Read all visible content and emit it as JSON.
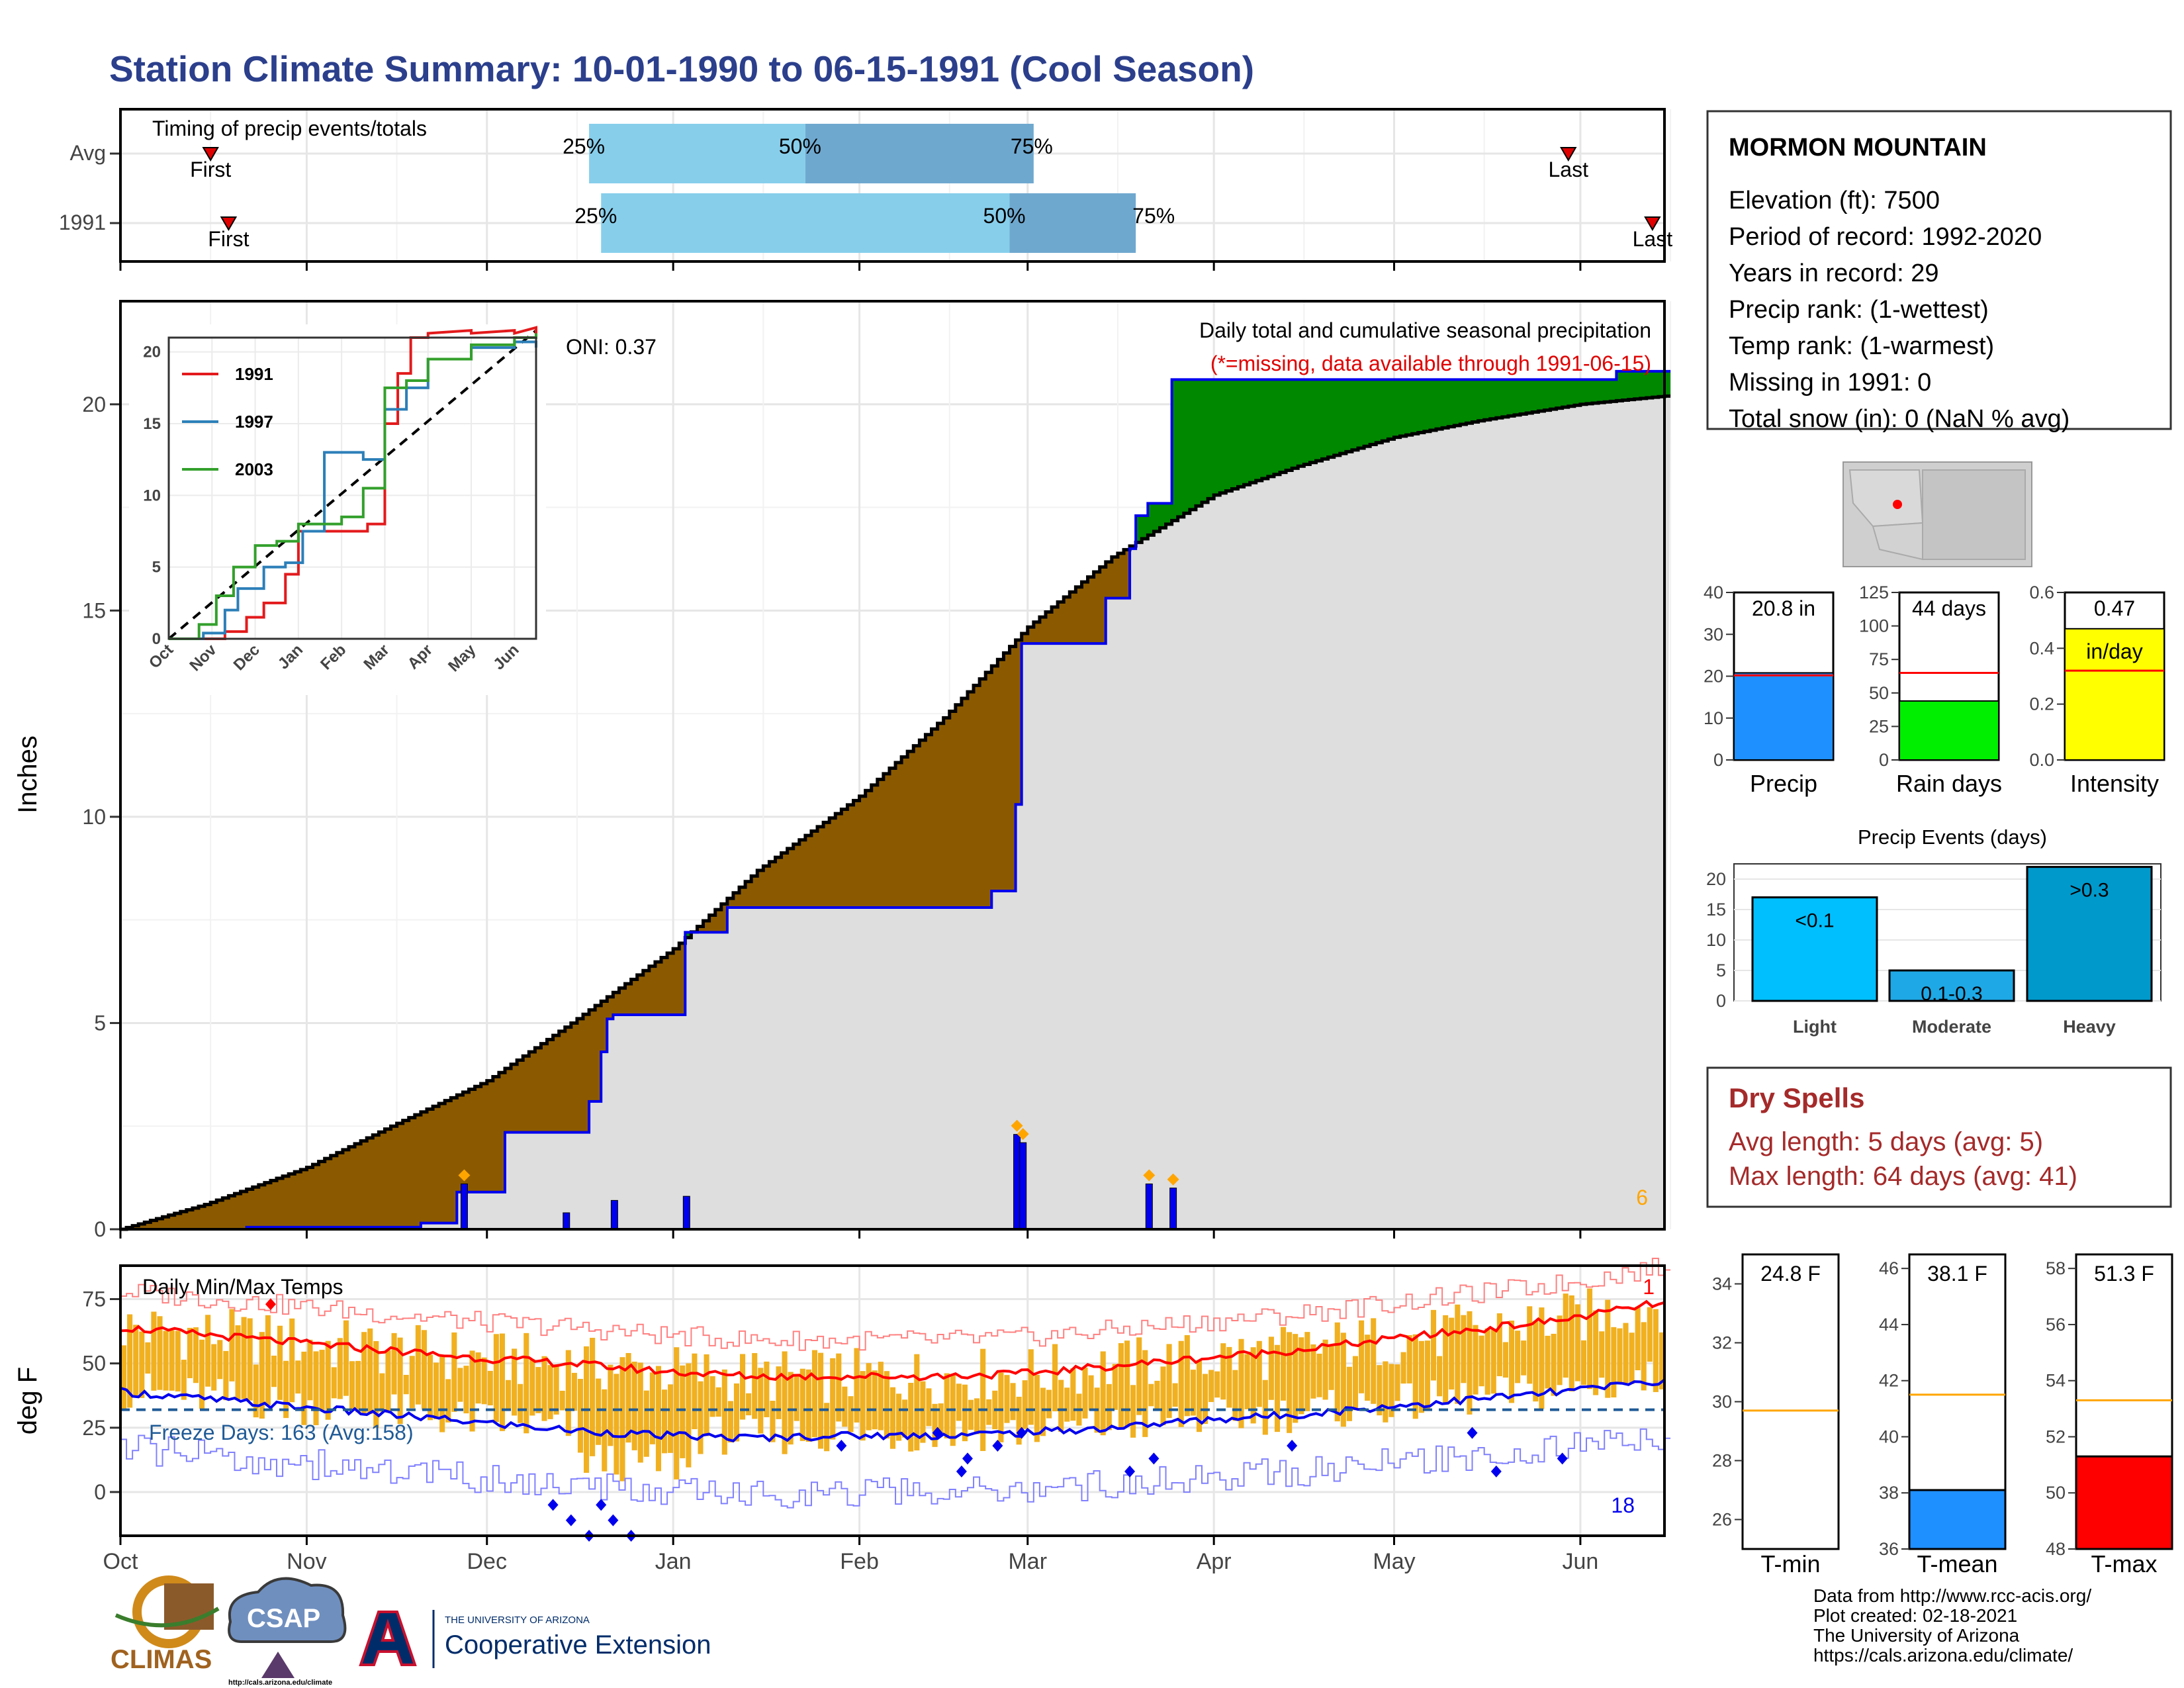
{
  "page": {
    "title": "Station Climate Summary: 10-01-1990 to 06-15-1991 (Cool Season)"
  },
  "colors": {
    "title": "#2b3f8c",
    "cum_1991": "#0000ee",
    "deficit_fill": "#8b5a00",
    "surplus_fill": "#008800",
    "avg_fill": "#dedede",
    "avg_line": "#000000",
    "bar_daily": "#0000ee",
    "marker": "#ffa500",
    "tmax": "#ff0000",
    "tmin": "#0000ee",
    "temp_bar": "#f0b020",
    "freeze_line": "#1f5a96",
    "dry_spells": "#a52a2a"
  },
  "timing": {
    "title": "Timing of precip events/totals",
    "rows": [
      {
        "label": "Avg",
        "first_label": "First",
        "last_label": "Last",
        "first_date": "1990-10-16",
        "last_date": "1991-05-30",
        "p25_date": "1990-12-18",
        "p50_date": "1991-01-23",
        "p75_date": "1991-03-02",
        "p25_label": "25%",
        "p50_label": "50%",
        "p75_label": "75%"
      },
      {
        "label": "1991",
        "first_label": "First",
        "last_label": "Last",
        "first_date": "1990-10-19",
        "last_date": "1991-06-13",
        "p25_date": "1990-12-20",
        "p50_date": "1991-02-26",
        "p75_date": "1991-03-19",
        "p25_label": "25%",
        "p50_label": "50%",
        "p75_label": "75%"
      }
    ]
  },
  "precip_panel": {
    "ylabel": "Inches",
    "title": "Daily total and cumulative seasonal precipitation",
    "subtitle": "(*=missing, data available through 1991-06-15)",
    "oni": "ONI: 0.37",
    "corner_count": "6"
  },
  "inset": {
    "legend": [
      {
        "name": "1991",
        "color": "#e31a1c"
      },
      {
        "name": "1997",
        "color": "#2c7fb8"
      },
      {
        "name": "2003",
        "color": "#33a02c"
      }
    ]
  },
  "temp_panel": {
    "ylabel": "deg F",
    "title": "Daily Min/Max Temps",
    "freeze_text": "Freeze Days: 163 (Avg:158)",
    "max_count": "1",
    "min_count": "18"
  },
  "station": {
    "name": "MORMON MOUNTAIN",
    "lines": [
      "Elevation (ft): 7500",
      "Period of record: 1992-2020",
      "Years in record: 29",
      "Precip rank:  (1-wettest)",
      "Temp rank:  (1-warmest)",
      "Missing in 1991: 0",
      "Total snow (in): 0 (NaN % avg)"
    ]
  },
  "summary_bars": [
    {
      "label": "Precip",
      "value_label": "20.8 in",
      "value": 20.8,
      "avg": 20.2,
      "ymax": 40,
      "ticks": [
        0,
        10,
        20,
        30,
        40
      ],
      "fill": "#1e90ff"
    },
    {
      "label": "Rain days",
      "value_label": "44 days",
      "value": 44,
      "avg": 65,
      "ymax": 125,
      "ticks": [
        0,
        25,
        50,
        75,
        100,
        125
      ],
      "fill": "#00ee00"
    },
    {
      "label": "Intensity",
      "value_label": "0.47",
      "value_label2": "in/day",
      "value": 0.47,
      "avg": 0.32,
      "ymax": 0.6,
      "ticks": [
        0.0,
        0.2,
        0.4,
        0.6
      ],
      "fill": "#ffff00"
    }
  ],
  "events": {
    "title": "Precip Events (days)",
    "bars": [
      {
        "label": "Light",
        "inner": "<0.1",
        "value": 17,
        "fill": "#00bfff"
      },
      {
        "label": "Moderate",
        "inner": "0.1-0.3",
        "value": 5,
        "fill": "#1ea8e6"
      },
      {
        "label": "Heavy",
        "inner": ">0.3",
        "value": 22,
        "fill": "#0099cc"
      }
    ],
    "ticks": [
      0,
      5,
      10,
      15,
      20
    ]
  },
  "dry_spells": {
    "title": "Dry Spells",
    "avg_length": "Avg length: 5 days (avg: 5)",
    "max_length": "Max length: 64 days (avg: 41)"
  },
  "temp_bars": [
    {
      "label": "T-min",
      "value_label": "24.8 F",
      "value": 24.8,
      "avg": 29.7,
      "ymin": 25,
      "ymax": 35,
      "ticks": [
        26,
        28,
        30,
        32,
        34
      ],
      "fill": "#0000ee"
    },
    {
      "label": "T-mean",
      "value_label": "38.1 F",
      "value": 38.1,
      "avg": 41.5,
      "ymin": 36,
      "ymax": 46.5,
      "ticks": [
        36,
        38,
        40,
        42,
        44,
        46
      ],
      "fill": "#1e90ff"
    },
    {
      "label": "T-max",
      "value_label": "51.3 F",
      "value": 51.3,
      "avg": 53.3,
      "ymin": 48,
      "ymax": 58.5,
      "ticks": [
        48,
        50,
        52,
        54,
        56,
        58
      ],
      "fill": "#ff0000"
    }
  ],
  "x_axis": {
    "months": [
      "Oct",
      "Nov",
      "Dec",
      "Jan",
      "Feb",
      "Mar",
      "Apr",
      "May",
      "Jun"
    ]
  },
  "footer": {
    "lines": [
      "Data from http://www.rcc-acis.org/",
      "Plot created: 02-18-2021",
      "The University of Arizona",
      "https://cals.arizona.edu/climate/"
    ],
    "logo_climas": "CLIMAS",
    "logo_csap": "CSAP",
    "logo_csap_url": "http://cals.arizona.edu/climate",
    "logo_ua_small": "THE UNIVERSITY OF ARIZONA",
    "logo_ua_big": "Cooperative Extension"
  },
  "chart_data": [
    {
      "type": "area",
      "title": "Daily total and cumulative seasonal precipitation",
      "ylabel": "Inches",
      "ylim": [
        0,
        22.5
      ],
      "xlim": [
        "1990-10-01",
        "1991-06-15"
      ],
      "series": [
        {
          "name": "1991",
          "x": [
            "1990-10-01",
            "1990-10-22",
            "1990-11-20",
            "1990-11-26",
            "1990-12-04",
            "1990-12-11",
            "1990-12-18",
            "1990-12-20",
            "1990-12-21",
            "1990-12-22",
            "1991-01-03",
            "1991-01-10",
            "1991-01-12",
            "1991-02-23",
            "1991-02-27",
            "1991-02-28",
            "1991-03-14",
            "1991-03-18",
            "1991-03-19",
            "1991-03-21",
            "1991-03-25",
            "1991-06-07",
            "1991-06-15"
          ],
          "values": [
            0.0,
            0.05,
            0.15,
            0.9,
            2.35,
            2.35,
            3.1,
            4.3,
            5.1,
            5.2,
            7.2,
            7.8,
            7.8,
            8.2,
            10.3,
            14.2,
            15.3,
            16.5,
            17.3,
            17.6,
            20.6,
            20.8,
            20.8
          ]
        },
        {
          "name": "Avg",
          "x": [
            "1990-10-01",
            "1990-10-15",
            "1990-11-01",
            "1990-11-15",
            "1990-12-01",
            "1990-12-15",
            "1991-01-01",
            "1991-01-15",
            "1991-02-01",
            "1991-02-15",
            "1991-03-01",
            "1991-03-15",
            "1991-04-01",
            "1991-04-15",
            "1991-05-01",
            "1991-05-15",
            "1991-06-01",
            "1991-06-15"
          ],
          "values": [
            0.0,
            0.6,
            1.5,
            2.5,
            3.6,
            5.0,
            6.8,
            8.7,
            10.5,
            12.4,
            14.6,
            16.3,
            17.8,
            18.5,
            19.2,
            19.6,
            20.0,
            20.2
          ]
        }
      ],
      "daily_bars": [
        {
          "x": "1990-11-27",
          "value": 1.1
        },
        {
          "x": "1990-12-14",
          "value": 0.4
        },
        {
          "x": "1990-12-22",
          "value": 0.7
        },
        {
          "x": "1991-01-03",
          "value": 0.8
        },
        {
          "x": "1991-02-27",
          "value": 2.3
        },
        {
          "x": "1991-02-28",
          "value": 2.1
        },
        {
          "x": "1991-03-21",
          "value": 1.1
        },
        {
          "x": "1991-03-25",
          "value": 1.0
        }
      ]
    },
    {
      "type": "line",
      "title": "",
      "xlim": [
        "Oct",
        "Jun"
      ],
      "ylim": [
        0,
        21
      ],
      "series": [
        {
          "name": "1991",
          "x": [
            0,
            1,
            1.3,
            1.8,
            2.2,
            2.7,
            3.0,
            3.5,
            4.0,
            4.6,
            5.0,
            5.3,
            5.6,
            6.0,
            7.0,
            8.0,
            8.5
          ],
          "values": [
            0,
            0,
            0.5,
            1.5,
            2.5,
            4.5,
            7.5,
            7.5,
            7.5,
            8.0,
            15.0,
            18.5,
            21.0,
            21.5,
            21.5,
            21.7,
            22.0
          ]
        },
        {
          "name": "1997",
          "x": [
            0,
            0.8,
            1.3,
            1.6,
            2.2,
            2.7,
            3.1,
            3.6,
            4.0,
            4.5,
            5.0,
            5.5,
            6.0,
            7.0,
            8.0,
            8.5
          ],
          "values": [
            0,
            0.4,
            2.0,
            3.5,
            5.0,
            5.3,
            7.5,
            13.0,
            13.0,
            12.5,
            16.0,
            17.5,
            19.5,
            20.3,
            20.7,
            20.3
          ]
        },
        {
          "name": "2003",
          "x": [
            0,
            0.7,
            1.1,
            1.5,
            2.0,
            2.5,
            3.0,
            3.5,
            4.0,
            4.5,
            5.0,
            5.5,
            6.0,
            7.0,
            8.0,
            8.5
          ],
          "values": [
            0,
            1.0,
            3.0,
            5.0,
            6.5,
            6.8,
            8.0,
            8.0,
            8.5,
            10.5,
            17.5,
            18.0,
            19.5,
            20.5,
            21.0,
            21.3
          ]
        }
      ]
    },
    {
      "type": "line",
      "title": "Daily Min/Max Temps",
      "ylabel": "deg F",
      "ylim": [
        -17,
        88
      ],
      "series": [
        {
          "name": "Tmax avg",
          "x": [
            0,
            15,
            30,
            45,
            60,
            75,
            90,
            105,
            120,
            135,
            150,
            165,
            180,
            195,
            210,
            225,
            240,
            255
          ],
          "values": [
            64,
            61,
            58,
            55,
            52,
            50,
            47,
            45,
            45,
            45,
            46,
            49,
            52,
            55,
            59,
            63,
            67,
            73
          ]
        },
        {
          "name": "Tmin avg",
          "x": [
            0,
            15,
            30,
            45,
            60,
            75,
            90,
            105,
            120,
            135,
            150,
            165,
            180,
            195,
            210,
            225,
            240,
            255
          ],
          "values": [
            39,
            36,
            33,
            30,
            27,
            24,
            22,
            21,
            22,
            22,
            23,
            25,
            28,
            30,
            33,
            36,
            39,
            43
          ]
        }
      ]
    }
  ]
}
